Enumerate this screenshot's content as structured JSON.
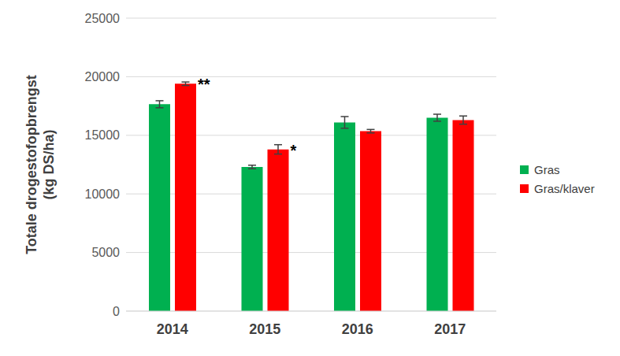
{
  "chart_data": {
    "type": "bar",
    "y_label": "Totale drogestofopbrengst (kg DS/ha)",
    "categories": [
      "2014",
      "2015",
      "2016",
      "2017"
    ],
    "series": [
      {
        "name": "Gras",
        "color": "#00b050",
        "values": [
          17650,
          12300,
          16100,
          16500
        ],
        "errors": [
          300,
          150,
          500,
          300
        ]
      },
      {
        "name": "Gras/klaver",
        "color": "#ff0000",
        "values": [
          19400,
          13800,
          15350,
          16300
        ],
        "errors": [
          150,
          400,
          150,
          350
        ],
        "annotations": [
          "**",
          "*",
          null,
          null
        ]
      }
    ],
    "ylim": [
      0,
      25000
    ],
    "yticks": [
      0,
      5000,
      10000,
      15000,
      20000,
      25000
    ],
    "grid": true
  }
}
